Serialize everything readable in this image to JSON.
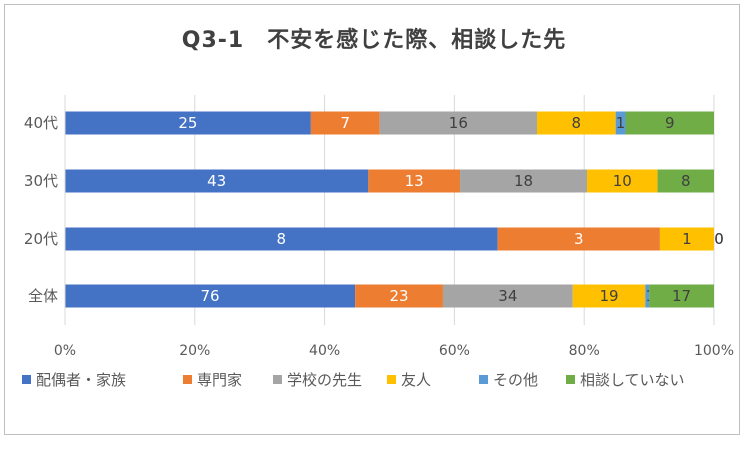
{
  "chart_data": {
    "type": "bar",
    "orientation": "horizontal",
    "stacked": "percent",
    "title": "Q3-1　不安を感じた際、相談した先",
    "categories": [
      "40代",
      "30代",
      "20代",
      "全体"
    ],
    "series": [
      {
        "name": "配偶者・家族",
        "color": "#4472c4",
        "label_color": "#ffffff",
        "values": [
          25,
          43,
          8,
          76
        ]
      },
      {
        "name": "専門家",
        "color": "#ed7d31",
        "label_color": "#ffffff",
        "values": [
          7,
          13,
          3,
          23
        ]
      },
      {
        "name": "学校の先生",
        "color": "#a5a5a5",
        "label_color": "#404040",
        "values": [
          16,
          18,
          0,
          34
        ]
      },
      {
        "name": "友人",
        "color": "#ffc000",
        "label_color": "#404040",
        "values": [
          8,
          10,
          1,
          19
        ]
      },
      {
        "name": "その他",
        "color": "#5b9bd5",
        "label_color": "#404040",
        "values": [
          1,
          0,
          0,
          1
        ]
      },
      {
        "name": "相談していない",
        "color": "#70ad47",
        "label_color": "#404040",
        "values": [
          9,
          8,
          0,
          17
        ]
      }
    ],
    "x_ticks": [
      "0%",
      "20%",
      "40%",
      "60%",
      "80%",
      "100%"
    ],
    "xlim": [
      0,
      100
    ],
    "grid": true,
    "legend": "bottom"
  }
}
